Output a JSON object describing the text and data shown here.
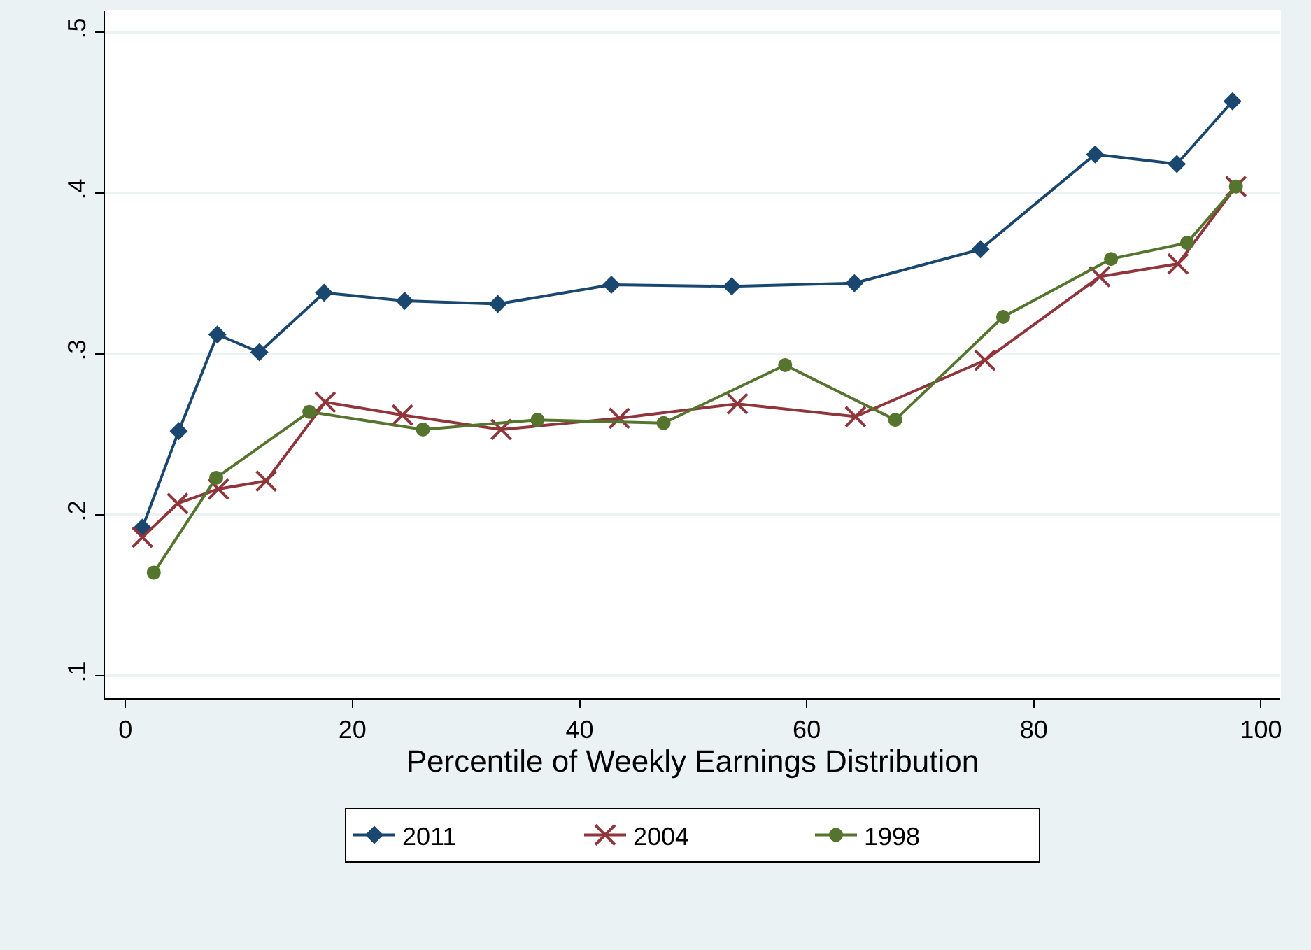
{
  "chart_data": {
    "type": "line",
    "xlabel": "Percentile of Weekly Earnings Distribution",
    "xlim": [
      -1.8,
      101.7
    ],
    "xticks": [
      0,
      20,
      40,
      60,
      80,
      100
    ],
    "ylim": [
      0.086,
      0.513
    ],
    "yticks": [
      {
        "value": 0.1,
        "label": ".1"
      },
      {
        "value": 0.2,
        "label": ".2"
      },
      {
        "value": 0.3,
        "label": ".3"
      },
      {
        "value": 0.4,
        "label": ".4"
      },
      {
        "value": 0.5,
        "label": ".5"
      }
    ],
    "grid": "y",
    "legend": "bottom",
    "line_style": "solid",
    "series": [
      {
        "name": "2011",
        "color": "#1a476f",
        "marker": "diamond",
        "x": [
          1.5,
          4.7,
          8.1,
          11.8,
          17.5,
          24.6,
          32.8,
          42.8,
          53.4,
          64.2,
          75.3,
          85.4,
          92.6,
          97.5
        ],
        "values": [
          0.192,
          0.252,
          0.312,
          0.301,
          0.338,
          0.333,
          0.331,
          0.343,
          0.342,
          0.344,
          0.365,
          0.424,
          0.418,
          0.457
        ]
      },
      {
        "name": "2004",
        "color": "#90353b",
        "marker": "cross",
        "x": [
          1.5,
          4.6,
          8.2,
          12.4,
          17.6,
          24.4,
          33.1,
          43.5,
          53.9,
          64.3,
          75.7,
          85.8,
          92.7,
          97.8
        ],
        "values": [
          0.186,
          0.207,
          0.216,
          0.221,
          0.27,
          0.262,
          0.253,
          0.26,
          0.269,
          0.261,
          0.296,
          0.348,
          0.356,
          0.404
        ]
      },
      {
        "name": "1998",
        "color": "#55752f",
        "marker": "circle",
        "x": [
          2.5,
          8.0,
          16.2,
          26.2,
          36.3,
          47.4,
          58.1,
          67.8,
          77.3,
          86.8,
          93.5,
          97.8
        ],
        "values": [
          0.164,
          0.223,
          0.264,
          0.253,
          0.259,
          0.257,
          0.293,
          0.259,
          0.323,
          0.359,
          0.369,
          0.404
        ]
      }
    ]
  }
}
